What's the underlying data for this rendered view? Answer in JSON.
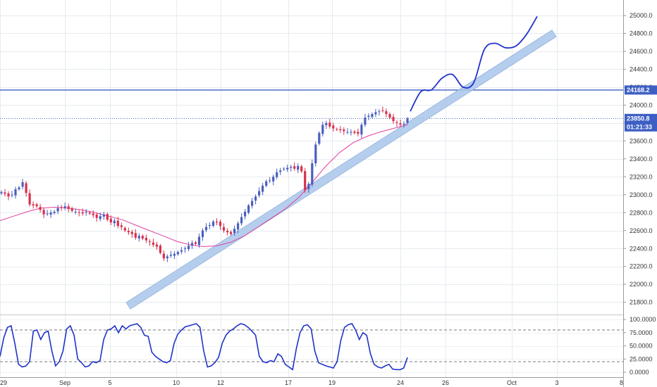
{
  "chart_data": [
    {
      "type": "candlestick",
      "title": "",
      "ylim": [
        21700,
        25100
      ],
      "y_ticks": [
        "25000.0",
        "24800.0",
        "24600.0",
        "24400.0",
        "24200.0",
        "24000.0",
        "23800.0",
        "23600.0",
        "23400.0",
        "23200.0",
        "23000.0",
        "22800.0",
        "22600.0",
        "22400.0",
        "22200.0",
        "22000.0",
        "21800.0"
      ],
      "x_ticks": [
        "29",
        "Sep",
        "5",
        "10",
        "12",
        "17",
        "19",
        "24",
        "26",
        "Oct",
        "3",
        "8"
      ],
      "grid": true,
      "price_line": {
        "value": 23850.8,
        "label": "23850.8",
        "countdown": "01:21:33"
      },
      "horizontal_level": {
        "value": 24168.2,
        "label": "24168.2"
      },
      "candles_close": [
        23030,
        23010,
        22980,
        23000,
        23060,
        23080,
        23140,
        23020,
        22890,
        22880,
        22870,
        22830,
        22780,
        22790,
        22800,
        22810,
        22850,
        22860,
        22870,
        22840,
        22820,
        22810,
        22800,
        22790,
        22810,
        22790,
        22770,
        22740,
        22760,
        22780,
        22720,
        22690,
        22710,
        22650,
        22640,
        22600,
        22580,
        22560,
        22520,
        22540,
        22510,
        22490,
        22470,
        22440,
        22420,
        22350,
        22290,
        22310,
        22330,
        22340,
        22360,
        22380,
        22400,
        22430,
        22460,
        22450,
        22530,
        22600,
        22640,
        22660,
        22700,
        22690,
        22650,
        22600,
        22580,
        22560,
        22620,
        22680,
        22750,
        22810,
        22880,
        22930,
        22980,
        23040,
        23100,
        23150,
        23160,
        23200,
        23250,
        23270,
        23290,
        23300,
        23310,
        23290,
        23320,
        23260,
        23050,
        23120,
        23350,
        23560,
        23690,
        23780,
        23800,
        23760,
        23740,
        23730,
        23720,
        23710,
        23700,
        23700,
        23690,
        23680,
        23780,
        23860,
        23880,
        23900,
        23920,
        23930,
        23940,
        23900,
        23860,
        23820,
        23800,
        23780,
        23790,
        23850
      ],
      "candle_colors": {
        "up": "#4a5fc0",
        "down": "#d8304c"
      },
      "moving_average": {
        "color": "#e040a0",
        "values": [
          22710,
          22760,
          22810,
          22850,
          22860,
          22850,
          22830,
          22800,
          22760,
          22720,
          22660,
          22600,
          22540,
          22480,
          22440,
          22420,
          22430,
          22470,
          22540,
          22640,
          22740,
          22840,
          22970,
          23140,
          23320,
          23470,
          23580,
          23650,
          23700,
          23740,
          23780
        ]
      },
      "trend_channel": {
        "color": "#a9c6ea",
        "start": {
          "x": "2017-09-04",
          "y": 21760
        },
        "end": {
          "x": "2017-10-03",
          "y": 24800
        }
      },
      "projection_path": {
        "color": "#1f33c9",
        "values": [
          23930,
          24150,
          24170,
          24300,
          24340,
          24200,
          24250,
          24620,
          24690,
          24640,
          24660,
          24790,
          24990
        ]
      }
    },
    {
      "type": "line",
      "title": "",
      "ylim": [
        0,
        100
      ],
      "y_ticks": [
        "100.0000",
        "75.0000",
        "50.0000",
        "25.0000",
        "0.0000"
      ],
      "guide_levels": [
        80,
        20
      ],
      "series": [
        {
          "color": "#1f33c9",
          "values": [
            30,
            65,
            85,
            88,
            55,
            15,
            10,
            12,
            20,
            78,
            80,
            62,
            75,
            78,
            40,
            12,
            20,
            40,
            82,
            88,
            70,
            25,
            18,
            10,
            12,
            20,
            18,
            22,
            62,
            80,
            82,
            88,
            75,
            88,
            82,
            88,
            90,
            92,
            85,
            70,
            68,
            38,
            30,
            25,
            20,
            18,
            22,
            55,
            72,
            80,
            86,
            88,
            90,
            92,
            85,
            40,
            10,
            12,
            18,
            28,
            55,
            70,
            78,
            82,
            88,
            92,
            90,
            85,
            78,
            70,
            30,
            20,
            18,
            22,
            20,
            35,
            30,
            15,
            10,
            5,
            45,
            75,
            88,
            90,
            82,
            40,
            18,
            15,
            12,
            10,
            8,
            20,
            60,
            85,
            90,
            92,
            80,
            62,
            75,
            70,
            35,
            15,
            10,
            8,
            12,
            15,
            6,
            5,
            5,
            8,
            28
          ]
        }
      ]
    }
  ]
}
